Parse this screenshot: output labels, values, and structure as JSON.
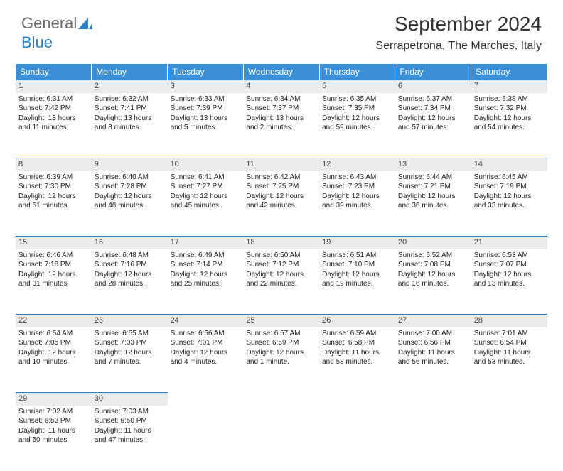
{
  "logo": {
    "text1": "General",
    "text2": "Blue"
  },
  "header": {
    "month": "September 2024",
    "location": "Serrapetrona, The Marches, Italy"
  },
  "weekday_header": {
    "background": "#3b8fd6",
    "text_color": "#ffffff",
    "days": [
      "Sunday",
      "Monday",
      "Tuesday",
      "Wednesday",
      "Thursday",
      "Friday",
      "Saturday"
    ]
  },
  "daynum_background": "#e9ebec",
  "border_color": "#2b7fc9",
  "days": {
    "1": {
      "sunrise": "Sunrise: 6:31 AM",
      "sunset": "Sunset: 7:42 PM",
      "daylight": "Daylight: 13 hours and 11 minutes."
    },
    "2": {
      "sunrise": "Sunrise: 6:32 AM",
      "sunset": "Sunset: 7:41 PM",
      "daylight": "Daylight: 13 hours and 8 minutes."
    },
    "3": {
      "sunrise": "Sunrise: 6:33 AM",
      "sunset": "Sunset: 7:39 PM",
      "daylight": "Daylight: 13 hours and 5 minutes."
    },
    "4": {
      "sunrise": "Sunrise: 6:34 AM",
      "sunset": "Sunset: 7:37 PM",
      "daylight": "Daylight: 13 hours and 2 minutes."
    },
    "5": {
      "sunrise": "Sunrise: 6:35 AM",
      "sunset": "Sunset: 7:35 PM",
      "daylight": "Daylight: 12 hours and 59 minutes."
    },
    "6": {
      "sunrise": "Sunrise: 6:37 AM",
      "sunset": "Sunset: 7:34 PM",
      "daylight": "Daylight: 12 hours and 57 minutes."
    },
    "7": {
      "sunrise": "Sunrise: 6:38 AM",
      "sunset": "Sunset: 7:32 PM",
      "daylight": "Daylight: 12 hours and 54 minutes."
    },
    "8": {
      "sunrise": "Sunrise: 6:39 AM",
      "sunset": "Sunset: 7:30 PM",
      "daylight": "Daylight: 12 hours and 51 minutes."
    },
    "9": {
      "sunrise": "Sunrise: 6:40 AM",
      "sunset": "Sunset: 7:28 PM",
      "daylight": "Daylight: 12 hours and 48 minutes."
    },
    "10": {
      "sunrise": "Sunrise: 6:41 AM",
      "sunset": "Sunset: 7:27 PM",
      "daylight": "Daylight: 12 hours and 45 minutes."
    },
    "11": {
      "sunrise": "Sunrise: 6:42 AM",
      "sunset": "Sunset: 7:25 PM",
      "daylight": "Daylight: 12 hours and 42 minutes."
    },
    "12": {
      "sunrise": "Sunrise: 6:43 AM",
      "sunset": "Sunset: 7:23 PM",
      "daylight": "Daylight: 12 hours and 39 minutes."
    },
    "13": {
      "sunrise": "Sunrise: 6:44 AM",
      "sunset": "Sunset: 7:21 PM",
      "daylight": "Daylight: 12 hours and 36 minutes."
    },
    "14": {
      "sunrise": "Sunrise: 6:45 AM",
      "sunset": "Sunset: 7:19 PM",
      "daylight": "Daylight: 12 hours and 33 minutes."
    },
    "15": {
      "sunrise": "Sunrise: 6:46 AM",
      "sunset": "Sunset: 7:18 PM",
      "daylight": "Daylight: 12 hours and 31 minutes."
    },
    "16": {
      "sunrise": "Sunrise: 6:48 AM",
      "sunset": "Sunset: 7:16 PM",
      "daylight": "Daylight: 12 hours and 28 minutes."
    },
    "17": {
      "sunrise": "Sunrise: 6:49 AM",
      "sunset": "Sunset: 7:14 PM",
      "daylight": "Daylight: 12 hours and 25 minutes."
    },
    "18": {
      "sunrise": "Sunrise: 6:50 AM",
      "sunset": "Sunset: 7:12 PM",
      "daylight": "Daylight: 12 hours and 22 minutes."
    },
    "19": {
      "sunrise": "Sunrise: 6:51 AM",
      "sunset": "Sunset: 7:10 PM",
      "daylight": "Daylight: 12 hours and 19 minutes."
    },
    "20": {
      "sunrise": "Sunrise: 6:52 AM",
      "sunset": "Sunset: 7:08 PM",
      "daylight": "Daylight: 12 hours and 16 minutes."
    },
    "21": {
      "sunrise": "Sunrise: 6:53 AM",
      "sunset": "Sunset: 7:07 PM",
      "daylight": "Daylight: 12 hours and 13 minutes."
    },
    "22": {
      "sunrise": "Sunrise: 6:54 AM",
      "sunset": "Sunset: 7:05 PM",
      "daylight": "Daylight: 12 hours and 10 minutes."
    },
    "23": {
      "sunrise": "Sunrise: 6:55 AM",
      "sunset": "Sunset: 7:03 PM",
      "daylight": "Daylight: 12 hours and 7 minutes."
    },
    "24": {
      "sunrise": "Sunrise: 6:56 AM",
      "sunset": "Sunset: 7:01 PM",
      "daylight": "Daylight: 12 hours and 4 minutes."
    },
    "25": {
      "sunrise": "Sunrise: 6:57 AM",
      "sunset": "Sunset: 6:59 PM",
      "daylight": "Daylight: 12 hours and 1 minute."
    },
    "26": {
      "sunrise": "Sunrise: 6:59 AM",
      "sunset": "Sunset: 6:58 PM",
      "daylight": "Daylight: 11 hours and 58 minutes."
    },
    "27": {
      "sunrise": "Sunrise: 7:00 AM",
      "sunset": "Sunset: 6:56 PM",
      "daylight": "Daylight: 11 hours and 56 minutes."
    },
    "28": {
      "sunrise": "Sunrise: 7:01 AM",
      "sunset": "Sunset: 6:54 PM",
      "daylight": "Daylight: 11 hours and 53 minutes."
    },
    "29": {
      "sunrise": "Sunrise: 7:02 AM",
      "sunset": "Sunset: 6:52 PM",
      "daylight": "Daylight: 11 hours and 50 minutes."
    },
    "30": {
      "sunrise": "Sunrise: 7:03 AM",
      "sunset": "Sunset: 6:50 PM",
      "daylight": "Daylight: 11 hours and 47 minutes."
    }
  },
  "layout": {
    "weeks": [
      [
        1,
        2,
        3,
        4,
        5,
        6,
        7
      ],
      [
        8,
        9,
        10,
        11,
        12,
        13,
        14
      ],
      [
        15,
        16,
        17,
        18,
        19,
        20,
        21
      ],
      [
        22,
        23,
        24,
        25,
        26,
        27,
        28
      ],
      [
        29,
        30,
        null,
        null,
        null,
        null,
        null
      ]
    ]
  }
}
